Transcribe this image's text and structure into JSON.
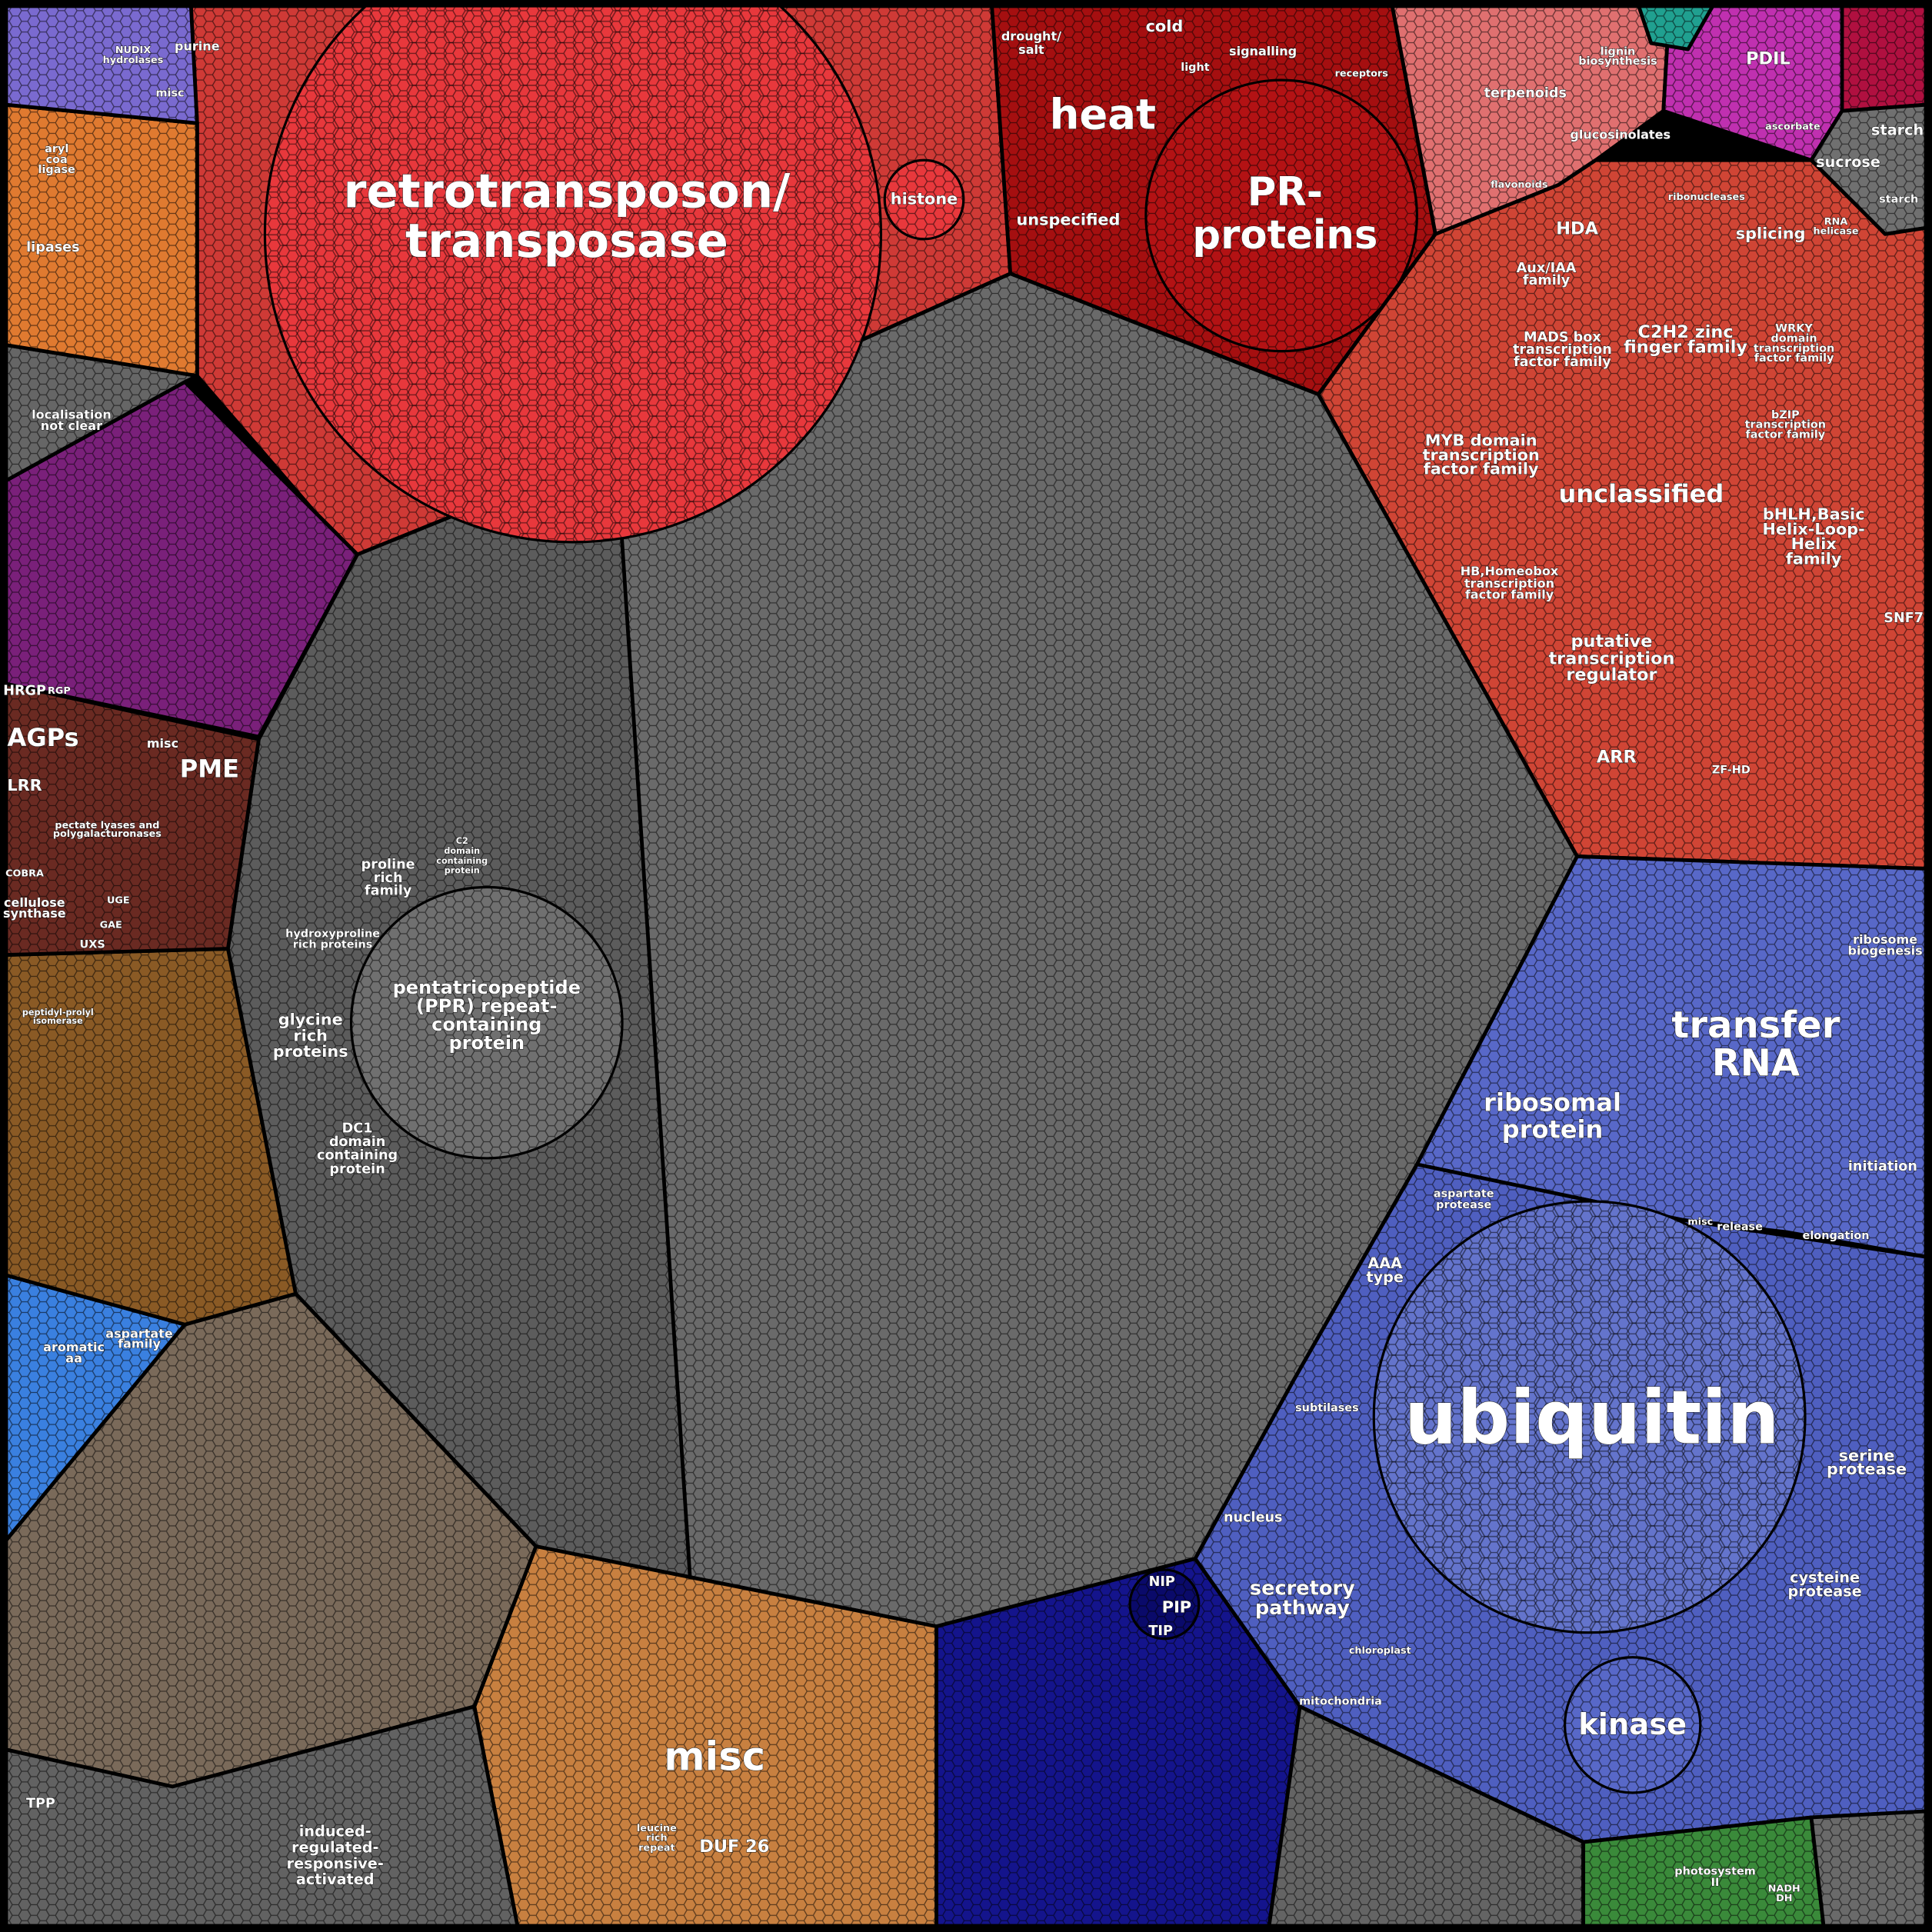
{
  "nodes": [
    {
      "label": [
        "retrotransposon/",
        "transposase"
      ]
    },
    {
      "label": [
        "histone"
      ]
    },
    {
      "label": [
        "heat"
      ]
    },
    {
      "label": [
        "drought/",
        "salt"
      ]
    },
    {
      "label": [
        "cold"
      ]
    },
    {
      "label": [
        "light"
      ]
    },
    {
      "label": [
        "signalling"
      ]
    },
    {
      "label": [
        "receptors"
      ]
    },
    {
      "label": [
        "unspecified"
      ]
    },
    {
      "label": [
        "PR-",
        "proteins"
      ]
    },
    {
      "label": [
        "terpenoids"
      ]
    },
    {
      "label": [
        "lignin",
        "biosynthesis"
      ]
    },
    {
      "label": [
        "glucosinolates"
      ]
    },
    {
      "label": [
        "flavonoids"
      ]
    },
    {
      "label": [
        "PDIL"
      ]
    },
    {
      "label": [
        "ascorbate"
      ]
    },
    {
      "label": [
        "starch"
      ]
    },
    {
      "label": [
        "sucrose"
      ]
    },
    {
      "label": [
        "HDA"
      ]
    },
    {
      "label": [
        "splicing"
      ]
    },
    {
      "label": [
        "ribonucleases"
      ]
    },
    {
      "label": [
        "Aux/IAA",
        "family"
      ]
    },
    {
      "label": [
        "C2H2 zinc",
        "finger family"
      ]
    },
    {
      "label": [
        "MADS box",
        "transcription",
        "factor family"
      ]
    },
    {
      "label": [
        "WRKY",
        "domain",
        "transcription",
        "factor family"
      ]
    },
    {
      "label": [
        "MYB domain",
        "transcription",
        "factor family"
      ]
    },
    {
      "label": [
        "unclassified"
      ]
    },
    {
      "label": [
        "bZIP",
        "transcription",
        "factor family"
      ]
    },
    {
      "label": [
        "bHLH,Basic",
        "Helix-Loop-",
        "Helix",
        "family"
      ]
    },
    {
      "label": [
        "HB,Homeobox",
        "transcription",
        "factor family"
      ]
    },
    {
      "label": [
        "putative",
        "transcription",
        "regulator"
      ]
    },
    {
      "label": [
        "ARR"
      ]
    },
    {
      "label": [
        "ZF-HD"
      ]
    },
    {
      "label": [
        "SNF7"
      ]
    },
    {
      "label": [
        "AGPs"
      ]
    },
    {
      "label": [
        "HRGP"
      ]
    },
    {
      "label": [
        "RGP"
      ]
    },
    {
      "label": [
        "PME"
      ]
    },
    {
      "label": [
        "misc"
      ]
    },
    {
      "label": [
        "LRR"
      ]
    },
    {
      "label": [
        "pectate lyases and",
        "polygalacturonases"
      ]
    },
    {
      "label": [
        "COBRA"
      ]
    },
    {
      "label": [
        "cellulose",
        "synthase"
      ]
    },
    {
      "label": [
        "UGE"
      ]
    },
    {
      "label": [
        "GAE"
      ]
    },
    {
      "label": [
        "UXS"
      ]
    },
    {
      "label": [
        "localisation",
        "not clear"
      ]
    },
    {
      "label": [
        "lipases"
      ]
    },
    {
      "label": [
        "aryl",
        "coa",
        "ligase"
      ]
    },
    {
      "label": [
        "NUDIX",
        "hydrolases"
      ]
    },
    {
      "label": [
        "purine"
      ]
    },
    {
      "label": [
        "misc"
      ]
    },
    {
      "label": [
        "proline",
        "rich",
        "family"
      ]
    },
    {
      "label": [
        "C2",
        "domain",
        "containing",
        "protein"
      ]
    },
    {
      "label": [
        "hydroxyproline",
        "rich proteins"
      ]
    },
    {
      "label": [
        "pentatricopeptide",
        "(PPR) repeat-",
        "containing",
        "protein"
      ]
    },
    {
      "label": [
        "glycine",
        "rich",
        "proteins"
      ]
    },
    {
      "label": [
        "DC1",
        "domain",
        "containing",
        "protein"
      ]
    },
    {
      "label": [
        "peptidyl-prolyl",
        "isomerase"
      ]
    },
    {
      "label": [
        "aspartate",
        "family"
      ]
    },
    {
      "label": [
        "aromatic",
        "aa"
      ]
    },
    {
      "label": [
        "transfer",
        "RNA"
      ]
    },
    {
      "label": [
        "ribosomal",
        "protein"
      ]
    },
    {
      "label": [
        "ribosome",
        "biogenesis"
      ]
    },
    {
      "label": [
        "initiation"
      ]
    },
    {
      "label": [
        "elongation"
      ]
    },
    {
      "label": [
        "release"
      ]
    },
    {
      "label": [
        "misc"
      ]
    },
    {
      "label": [
        "aspartate",
        "protease"
      ]
    },
    {
      "label": [
        "AAA",
        "type"
      ]
    },
    {
      "label": [
        "ubiquitin"
      ]
    },
    {
      "label": [
        "subtilases"
      ]
    },
    {
      "label": [
        "serine",
        "protease"
      ]
    },
    {
      "label": [
        "nucleus"
      ]
    },
    {
      "label": [
        "secretory",
        "pathway"
      ]
    },
    {
      "label": [
        "cysteine",
        "protease"
      ]
    },
    {
      "label": [
        "chloroplast"
      ]
    },
    {
      "label": [
        "mitochondria"
      ]
    },
    {
      "label": [
        "kinase"
      ]
    },
    {
      "label": [
        "NIP"
      ]
    },
    {
      "label": [
        "PIP"
      ]
    },
    {
      "label": [
        "TIP"
      ]
    },
    {
      "label": [
        "photosystem",
        "II"
      ]
    },
    {
      "label": [
        "misc"
      ]
    },
    {
      "label": [
        "DUF 26"
      ]
    },
    {
      "label": [
        "leucine",
        "rich",
        "repeat"
      ]
    },
    {
      "label": [
        "induced-",
        "regulated-",
        "responsive-",
        "activated"
      ]
    },
    {
      "label": [
        "TPP"
      ]
    },
    {
      "label": [
        "NADH",
        "DH"
      ]
    },
    {
      "label": [
        "starch"
      ]
    },
    {
      "label": [
        "RNA",
        "helicase"
      ]
    }
  ]
}
